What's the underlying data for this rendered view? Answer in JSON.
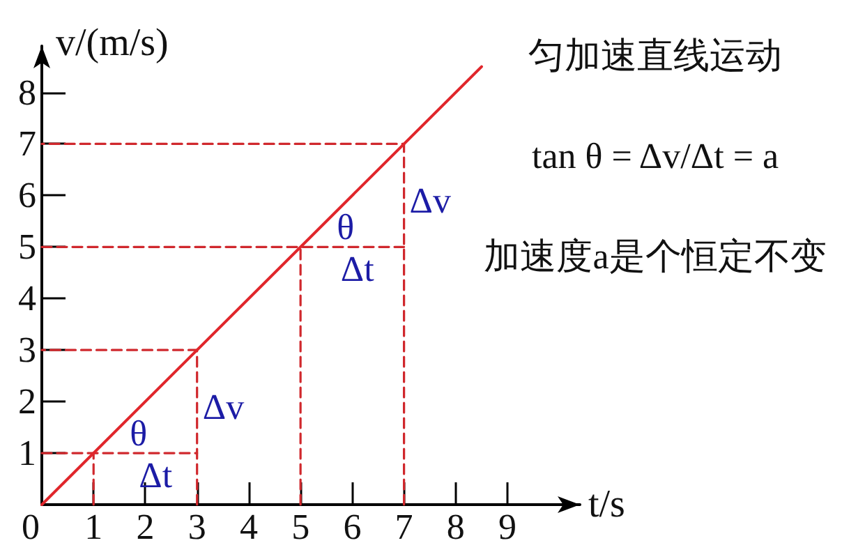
{
  "chart_data": {
    "type": "line",
    "xlabel": "t/s",
    "ylabel": "v/(m/s)",
    "xlim": [
      0,
      10.4
    ],
    "ylim": [
      0,
      8.9
    ],
    "xticks": [
      0,
      1,
      2,
      3,
      4,
      5,
      6,
      7,
      8,
      9
    ],
    "yticks": [
      1,
      2,
      3,
      4,
      5,
      6,
      7,
      8
    ],
    "marker": "none",
    "series": [
      {
        "color": "#e0262b",
        "line_style": "solid",
        "x": [
          0,
          8.5
        ],
        "values": [
          0,
          8.5
        ]
      },
      {
        "color": "#d0282d",
        "line_style": "dashed",
        "x": [
          1,
          1
        ],
        "values": [
          0,
          1
        ]
      },
      {
        "color": "#d0282d",
        "line_style": "dashed",
        "x": [
          0,
          3
        ],
        "values": [
          1,
          1
        ]
      },
      {
        "color": "#d0282d",
        "line_style": "dashed",
        "x": [
          3,
          3,
          0
        ],
        "values": [
          0,
          3,
          3
        ]
      },
      {
        "color": "#d0282d",
        "line_style": "dashed",
        "x": [
          5,
          5
        ],
        "values": [
          0,
          5
        ]
      },
      {
        "color": "#d0282d",
        "line_style": "dashed",
        "x": [
          0,
          7
        ],
        "values": [
          5,
          5
        ]
      },
      {
        "color": "#d0282d",
        "line_style": "dashed",
        "x": [
          7,
          7,
          0
        ],
        "values": [
          0,
          7,
          7
        ]
      }
    ],
    "annotations": [
      "匀加速直线运动",
      "tan θ = Δv/Δt = a",
      "加速度a是个恒定不变",
      {
        "text": "θ",
        "x": 1,
        "y": 1
      },
      {
        "text": "Δt",
        "x": 2.2,
        "y": 1
      },
      {
        "text": "Δv",
        "x": 3,
        "y": 1.9
      },
      {
        "text": "θ",
        "x": 5,
        "y": 5
      },
      {
        "text": "Δt",
        "x": 6.1,
        "y": 5
      },
      {
        "text": "Δv",
        "x": 7,
        "y": 5.9
      }
    ]
  }
}
